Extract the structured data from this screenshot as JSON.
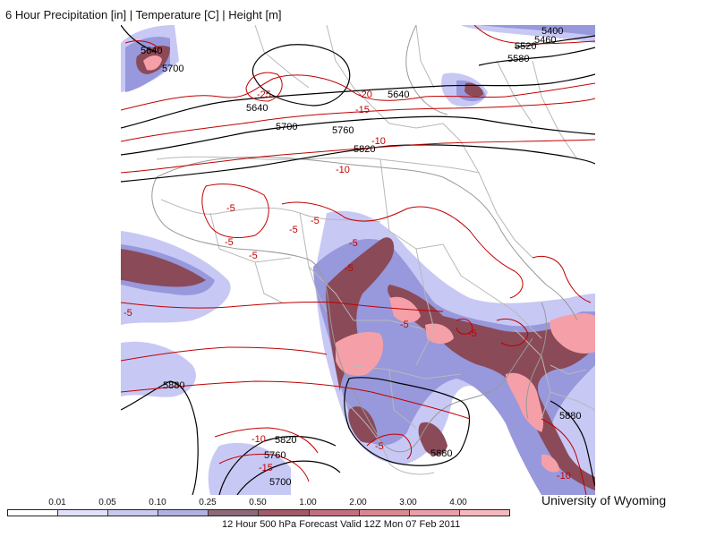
{
  "title": "6 Hour Precipitation [in] | Temperature [C] | Height [m]",
  "credit": "University of Wyoming",
  "valid_text": "12 Hour 500 hPa Forecast Valid 12Z Mon 07 Feb 2011",
  "colors": {
    "precip_light": "#c8c8f5",
    "precip_mid": "#9090d8",
    "precip_heavy": "#8a4a58",
    "precip_peak": "#f5a0a8",
    "temp_contour": "#c00000",
    "height_contour": "#000000",
    "border": "#b8b8b8"
  },
  "precip_scale": {
    "labels": [
      "0.01",
      "0.05",
      "0.10",
      "0.25",
      "0.50",
      "1.00",
      "2.00",
      "3.00",
      "4.00"
    ],
    "colors": [
      "#ffffff",
      "#e0e0fa",
      "#c8c8f0",
      "#b0b0e0",
      "#8c6878",
      "#a05a68",
      "#c07080",
      "#d88890",
      "#e8a0a8",
      "#f5b8bc"
    ]
  },
  "height_labels": [
    "5640",
    "5700",
    "5640",
    "5700",
    "5760",
    "5820",
    "5640",
    "5400",
    "5460",
    "5520",
    "5580",
    "5880",
    "5820",
    "5760",
    "5700",
    "5880",
    "5880"
  ],
  "temp_labels": [
    "-25",
    "-20",
    "-15",
    "-10",
    "-10",
    "-5",
    "-5",
    "-5",
    "-5",
    "-5",
    "-5",
    "-5",
    "-5",
    "-5",
    "-5",
    "-5",
    "-10",
    "-15",
    "-10"
  ]
}
